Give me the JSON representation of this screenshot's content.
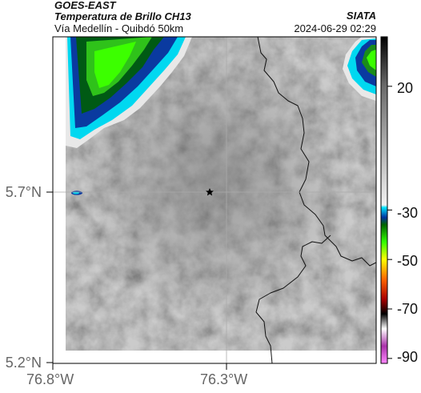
{
  "header": {
    "satellite": "GOES-EAST",
    "product": "Temperatura de Brillo CH13",
    "route": "Vía Medellín - Quibdó 50km",
    "organization": "SIATA",
    "timestamp": "2024-06-29 02:29"
  },
  "map": {
    "lat_labels": [
      "5.7°N",
      "5.2°N"
    ],
    "lon_labels": [
      "76.8°W",
      "76.3°W"
    ],
    "marker": "star",
    "background_color": "#8c8c8c"
  },
  "colorbar": {
    "tick_labels": [
      "20",
      "-30",
      "-50",
      "-70",
      "-90"
    ],
    "stops": [
      {
        "value": 40,
        "color": "#000000"
      },
      {
        "value": 20,
        "color": "#6b6b6b"
      },
      {
        "value": -28,
        "color": "#f2f2f2"
      },
      {
        "value": -29,
        "color": "#00e5ff"
      },
      {
        "value": -33,
        "color": "#0033a0"
      },
      {
        "value": -36,
        "color": "#006400"
      },
      {
        "value": -43,
        "color": "#33ff00"
      },
      {
        "value": -50,
        "color": "#ffff00"
      },
      {
        "value": -58,
        "color": "#ff6600"
      },
      {
        "value": -66,
        "color": "#aa0000"
      },
      {
        "value": -72,
        "color": "#000000"
      },
      {
        "value": -78,
        "color": "#ffffff"
      },
      {
        "value": -85,
        "color": "#aa33aa"
      },
      {
        "value": -92,
        "color": "#ff88ff"
      }
    ]
  }
}
